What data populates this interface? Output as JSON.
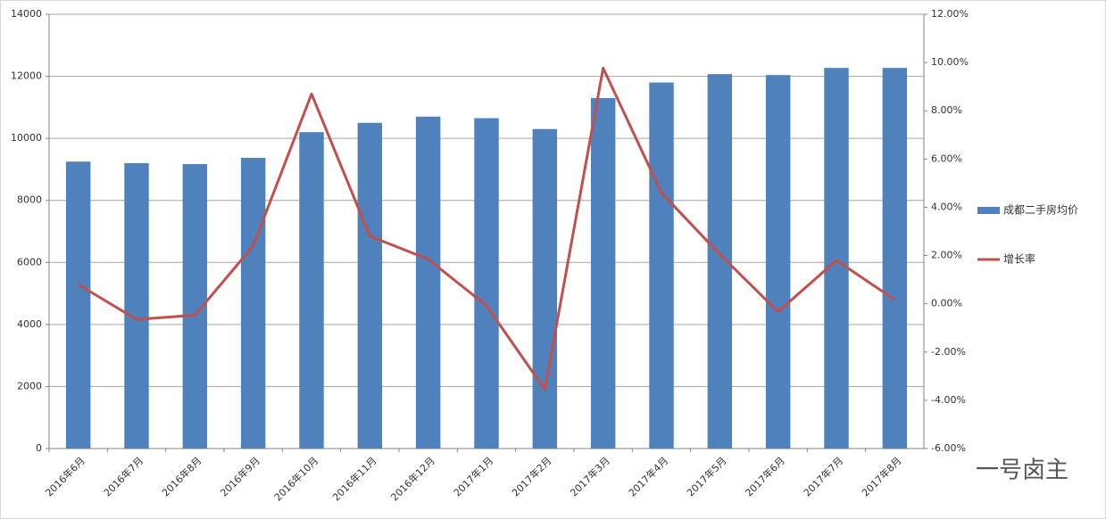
{
  "chart_data": {
    "type": "bar-line",
    "categories": [
      "2016年6月",
      "2016年7月",
      "2016年8月",
      "2016年9月",
      "2016年10月",
      "2016年11月",
      "2016年12月",
      "2017年1月",
      "2017年2月",
      "2017年3月",
      "2017年4月",
      "2017年5月",
      "2017年6月",
      "2017年7月",
      "2017年8月"
    ],
    "series": [
      {
        "name": "成都二手房均价",
        "type": "bar",
        "color": "#4f81bd",
        "values": [
          9250,
          9200,
          9170,
          9370,
          10200,
          10500,
          10700,
          10650,
          10300,
          11300,
          11800,
          12070,
          12040,
          12270,
          12270
        ]
      },
      {
        "name": "增长率",
        "type": "line",
        "axis": "y2",
        "color": "#c0504d",
        "values": [
          0.8,
          -0.65,
          -0.47,
          2.4,
          8.7,
          2.8,
          1.85,
          -0.08,
          -3.55,
          9.77,
          4.6,
          2.05,
          -0.33,
          1.8,
          0.17
        ]
      }
    ],
    "ylim": [
      0,
      14000
    ],
    "yticks": [
      0,
      2000,
      4000,
      6000,
      8000,
      10000,
      12000,
      14000
    ],
    "y2lim": [
      -6,
      12
    ],
    "y2ticks": [
      {
        "value": -6,
        "label": "-6.00%"
      },
      {
        "value": -4,
        "label": "-4.00%"
      },
      {
        "value": -2,
        "label": "-2.00%"
      },
      {
        "value": 0,
        "label": "0.00%"
      },
      {
        "value": 2,
        "label": "2.00%"
      },
      {
        "value": 4,
        "label": "4.00%"
      },
      {
        "value": 6,
        "label": "6.00%"
      },
      {
        "value": 8,
        "label": "8.00%"
      },
      {
        "value": 10,
        "label": "10.00%"
      },
      {
        "value": 12,
        "label": "12.00%"
      }
    ],
    "grid": true,
    "legend": "right",
    "watermark": "一号卤主"
  }
}
